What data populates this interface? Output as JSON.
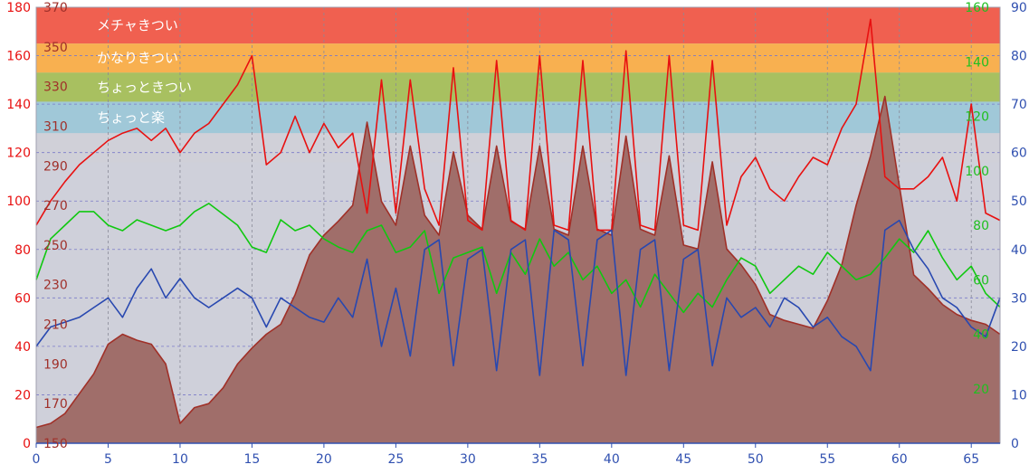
{
  "chart_data": {
    "type": "line",
    "title": "",
    "xlabel": "",
    "x_range": [
      0,
      67
    ],
    "x_ticks": [
      "0",
      "5",
      "10",
      "15",
      "20",
      "25",
      "30",
      "35",
      "40",
      "45",
      "50",
      "55",
      "60",
      "65"
    ],
    "x_tick_values": [
      0,
      5,
      10,
      15,
      20,
      25,
      30,
      35,
      40,
      45,
      50,
      55,
      60,
      65
    ],
    "axes": {
      "left_red": {
        "range": [
          0,
          180
        ],
        "ticks": [
          "0",
          "20",
          "40",
          "60",
          "80",
          "100",
          "120",
          "140",
          "160",
          "180"
        ],
        "tick_values": [
          0,
          20,
          40,
          60,
          80,
          100,
          120,
          140,
          160,
          180
        ],
        "color": "#e81010"
      },
      "left_inner": {
        "range": [
          150,
          370
        ],
        "ticks": [
          "150",
          "170",
          "190",
          "210",
          "230",
          "250",
          "270",
          "290",
          "310",
          "330",
          "350",
          "370"
        ],
        "tick_values": [
          150,
          170,
          190,
          210,
          230,
          250,
          270,
          290,
          310,
          330,
          350,
          370
        ],
        "color": "#a0302a"
      },
      "right_green": {
        "range": [
          0,
          160
        ],
        "ticks": [
          "20",
          "40",
          "60",
          "80",
          "100",
          "120",
          "140",
          "160"
        ],
        "tick_values": [
          20,
          40,
          60,
          80,
          100,
          120,
          140,
          160
        ],
        "color": "#20c020"
      },
      "right_blue": {
        "range": [
          0,
          90
        ],
        "ticks": [
          "0",
          "10",
          "20",
          "30",
          "40",
          "50",
          "60",
          "70",
          "80",
          "90"
        ],
        "tick_values": [
          0,
          10,
          20,
          30,
          40,
          50,
          60,
          70,
          80,
          90
        ],
        "color": "#3050b0"
      }
    },
    "zones": [
      {
        "label": "メチャきつい",
        "from": 165,
        "to": 180,
        "color": "#f06050"
      },
      {
        "label": "かなりきつい",
        "from": 153,
        "to": 165,
        "color": "#f8b050"
      },
      {
        "label": "ちょっときつい",
        "from": 141,
        "to": 153,
        "color": "#a8c060"
      },
      {
        "label": "ちょっと楽",
        "from": 128,
        "to": 141,
        "color": "#a0c8d8"
      },
      {
        "label": "",
        "from": 116,
        "to": 128,
        "color": "#d0d0d8"
      }
    ],
    "series": [
      {
        "axis": "left_inner",
        "color": "#a03028",
        "fill": "#a06e6a",
        "x": [
          0,
          1,
          2,
          3,
          4,
          5,
          6,
          7,
          8,
          9,
          10,
          11,
          12,
          13,
          14,
          15,
          16,
          17,
          18,
          19,
          20,
          21,
          22,
          23,
          24,
          25,
          26,
          27,
          28,
          29,
          30,
          31,
          32,
          33,
          34,
          35,
          36,
          37,
          38,
          39,
          40,
          41,
          42,
          43,
          44,
          45,
          46,
          47,
          48,
          49,
          50,
          51,
          52,
          53,
          54,
          55,
          56,
          57,
          58,
          59,
          60,
          61,
          62,
          63,
          64,
          65,
          66,
          67
        ],
        "values": [
          158,
          160,
          165,
          175,
          185,
          200,
          205,
          202,
          200,
          190,
          160,
          168,
          170,
          178,
          190,
          198,
          205,
          210,
          225,
          245,
          255,
          262,
          270,
          312,
          272,
          260,
          300,
          265,
          255,
          297,
          265,
          258,
          300,
          262,
          258,
          300,
          258,
          255,
          300,
          258,
          255,
          305,
          258,
          255,
          295,
          250,
          248,
          292,
          248,
          240,
          230,
          215,
          212,
          210,
          208,
          222,
          240,
          270,
          295,
          325,
          280,
          235,
          228,
          220,
          215,
          212,
          210,
          205
        ]
      },
      {
        "axis": "left_red",
        "color": "#e81010",
        "x": [
          0,
          1,
          2,
          3,
          4,
          5,
          6,
          7,
          8,
          9,
          10,
          11,
          12,
          13,
          14,
          15,
          16,
          17,
          18,
          19,
          20,
          21,
          22,
          23,
          24,
          25,
          26,
          27,
          28,
          29,
          30,
          31,
          32,
          33,
          34,
          35,
          36,
          37,
          38,
          39,
          40,
          41,
          42,
          43,
          44,
          45,
          46,
          47,
          48,
          49,
          50,
          51,
          52,
          53,
          54,
          55,
          56,
          57,
          58,
          59,
          60,
          61,
          62,
          63,
          64,
          65,
          66,
          67
        ],
        "values": [
          90,
          100,
          108,
          115,
          120,
          125,
          128,
          130,
          125,
          130,
          120,
          128,
          132,
          140,
          148,
          160,
          115,
          120,
          135,
          120,
          132,
          122,
          128,
          95,
          150,
          95,
          150,
          105,
          90,
          155,
          92,
          88,
          158,
          92,
          88,
          160,
          90,
          88,
          158,
          88,
          88,
          162,
          90,
          88,
          160,
          90,
          88,
          158,
          90,
          110,
          118,
          105,
          100,
          110,
          118,
          115,
          130,
          140,
          175,
          110,
          105,
          105,
          110,
          118,
          100,
          140,
          95,
          92
        ]
      },
      {
        "axis": "right_green",
        "color": "#10c810",
        "x": [
          0,
          1,
          2,
          3,
          4,
          5,
          6,
          7,
          8,
          9,
          10,
          11,
          12,
          13,
          14,
          15,
          16,
          17,
          18,
          19,
          20,
          21,
          22,
          23,
          24,
          25,
          26,
          27,
          28,
          29,
          30,
          31,
          32,
          33,
          34,
          35,
          36,
          37,
          38,
          39,
          40,
          41,
          42,
          43,
          44,
          45,
          46,
          47,
          48,
          49,
          50,
          51,
          52,
          53,
          54,
          55,
          56,
          57,
          58,
          59,
          60,
          61,
          62,
          63,
          64,
          65,
          66,
          67
        ],
        "values": [
          60,
          75,
          80,
          85,
          85,
          80,
          78,
          82,
          80,
          78,
          80,
          85,
          88,
          84,
          80,
          72,
          70,
          82,
          78,
          80,
          75,
          72,
          70,
          78,
          80,
          70,
          72,
          78,
          55,
          68,
          70,
          72,
          55,
          70,
          62,
          75,
          65,
          70,
          60,
          65,
          55,
          60,
          50,
          62,
          55,
          48,
          55,
          50,
          60,
          68,
          65,
          55,
          60,
          65,
          62,
          70,
          65,
          60,
          62,
          68,
          75,
          70,
          78,
          68,
          60,
          65,
          55,
          50
        ]
      },
      {
        "axis": "right_blue",
        "color": "#2848b0",
        "x": [
          0,
          1,
          2,
          3,
          4,
          5,
          6,
          7,
          8,
          9,
          10,
          11,
          12,
          13,
          14,
          15,
          16,
          17,
          18,
          19,
          20,
          21,
          22,
          23,
          24,
          25,
          26,
          27,
          28,
          29,
          30,
          31,
          32,
          33,
          34,
          35,
          36,
          37,
          38,
          39,
          40,
          41,
          42,
          43,
          44,
          45,
          46,
          47,
          48,
          49,
          50,
          51,
          52,
          53,
          54,
          55,
          56,
          57,
          58,
          59,
          60,
          61,
          62,
          63,
          64,
          65,
          66,
          67
        ],
        "values": [
          20,
          24,
          25,
          26,
          28,
          30,
          26,
          32,
          36,
          30,
          34,
          30,
          28,
          30,
          32,
          30,
          24,
          30,
          28,
          26,
          25,
          30,
          26,
          38,
          20,
          32,
          18,
          40,
          42,
          16,
          38,
          40,
          15,
          40,
          42,
          14,
          44,
          42,
          16,
          42,
          44,
          14,
          40,
          42,
          15,
          38,
          40,
          16,
          30,
          26,
          28,
          24,
          30,
          28,
          24,
          26,
          22,
          20,
          15,
          44,
          46,
          40,
          36,
          30,
          28,
          24,
          22,
          30
        ]
      }
    ]
  }
}
